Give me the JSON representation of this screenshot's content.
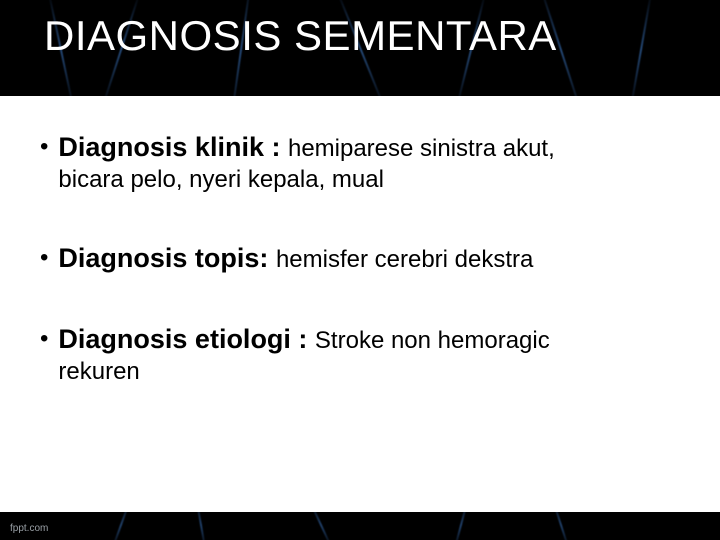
{
  "slide": {
    "title": "DIAGNOSIS SEMENTARA",
    "title_color": "#ffffff",
    "title_fontsize": 42,
    "header_bg": "#000000",
    "body_bg": "#ffffff",
    "text_color": "#000000",
    "accent_streak_color": "#4a8ce0",
    "bullets": [
      {
        "label": "Diagnosis klinik : ",
        "desc_line1": "hemiparese sinistra akut,",
        "desc_line2": "bicara pelo, nyeri kepala, mual"
      },
      {
        "label": "Diagnosis topis: ",
        "desc_line1": "hemisfer cerebri dekstra",
        "desc_line2": ""
      },
      {
        "label": "Diagnosis etiologi : ",
        "desc_line1": "Stroke non hemoragic",
        "desc_line2": "rekuren"
      }
    ],
    "label_fontsize": 27,
    "desc_fontsize": 24,
    "footer_bg": "#000000",
    "watermark": "fppt.com",
    "watermark_color": "#9aa0a6"
  }
}
